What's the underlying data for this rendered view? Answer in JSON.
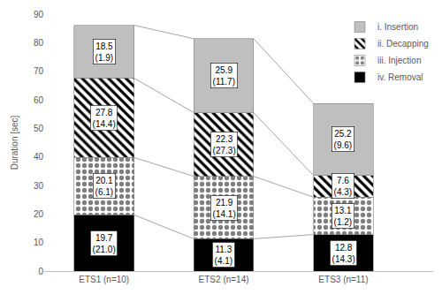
{
  "chart_data": {
    "type": "bar",
    "stacked": true,
    "data_labels": true,
    "grid": false,
    "legend": "right",
    "y_label": "Duration [sec]",
    "categories": [
      "ETS1 (n=10)",
      "ETS2 (n=14)",
      "ETS3 (n=11)"
    ],
    "ylim": [
      0,
      90
    ],
    "yticks": [
      0,
      10,
      20,
      30,
      40,
      50,
      60,
      70,
      80,
      90
    ],
    "series": [
      {
        "name": "iv. Removal",
        "color": "#000000",
        "marker": "solid",
        "values": [
          19.7,
          11.3,
          12.8
        ],
        "value_labels": [
          "19.7\n(21.0)",
          "11.3\n(4.1)",
          "12.8\n(14.3)"
        ]
      },
      {
        "name": "iii. Injection",
        "color": "#7f7f7f",
        "marker": "dotted",
        "values": [
          20.1,
          21.9,
          13.1
        ],
        "value_labels": [
          "20.1\n(6.1)",
          "21.9\n(14.1)",
          "13.1\n(1.2)"
        ]
      },
      {
        "name": "ii. Decapping",
        "color": "#000000",
        "marker": "hatched",
        "values": [
          27.8,
          22.3,
          7.6
        ],
        "value_labels": [
          "27.8\n(14.4)",
          "22.3\n(27.3)",
          "7.6\n(4.3)"
        ]
      },
      {
        "name": "i. Insertion",
        "color": "#bfbfbf",
        "marker": "solid",
        "values": [
          18.5,
          25.9,
          25.2
        ],
        "value_labels": [
          "18.5\n(1.9)",
          "25.9\n(11.7)",
          "25.2\n(9.6)"
        ]
      }
    ]
  }
}
